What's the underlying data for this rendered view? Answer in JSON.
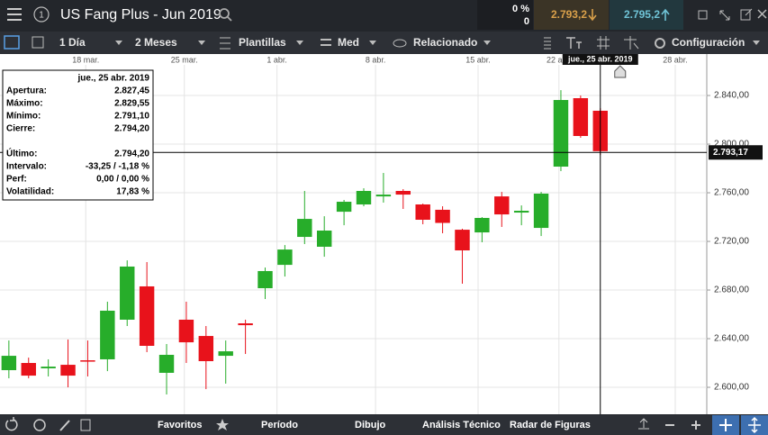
{
  "header": {
    "badge": "1",
    "title": "US Fang Plus - Jun 2019",
    "change_pct": "0 %",
    "change_abs": "0",
    "bid": "2.793,2",
    "ask": "2.795,2"
  },
  "toolbar": {
    "interval": "1 Día",
    "range": "2 Meses",
    "templates": "Plantillas",
    "study": "Med",
    "related": "Relacionado",
    "settings": "Configuración"
  },
  "info_panel": {
    "date": "jue., 25 abr. 2019",
    "rows": [
      [
        "Apertura:",
        "2.827,45"
      ],
      [
        "Máximo:",
        "2.829,55"
      ],
      [
        "Mínimo:",
        "2.791,10"
      ],
      [
        "Cierre:",
        "2.794,20"
      ]
    ],
    "rows2": [
      [
        "Último:",
        "2.794,20"
      ],
      [
        "Intervalo:",
        "-33,25 / -1,18 %"
      ],
      [
        "Perf:",
        "0,00 / 0,00 %"
      ],
      [
        "Volatilidad:",
        "17,83 %"
      ]
    ]
  },
  "footer": {
    "favorites": "Favoritos",
    "period": "Período",
    "drawing": "Dibujo",
    "technical": "Análisis Técnico",
    "patterns": "Radar de Figuras"
  },
  "chart_data": {
    "type": "candlestick",
    "categories": [
      null,
      null,
      null,
      null,
      null,
      null,
      null,
      null,
      null,
      null,
      null,
      null,
      null,
      null,
      null,
      null,
      null,
      null,
      null,
      null,
      null,
      null,
      null,
      null,
      null,
      null,
      null,
      null,
      null,
      null,
      null
    ],
    "open": [
      2614.1,
      2620.0,
      2615.6,
      2618.5,
      2622.2,
      2623.0,
      2655.6,
      2683.0,
      2611.9,
      2655.6,
      2642.2,
      2625.9,
      2652.6,
      2681.5,
      2700.7,
      2723.7,
      2715.6,
      2744.4,
      2750.4,
      2757.0,
      2761.5,
      2750.4,
      2746.0,
      2729.6,
      2727.4,
      2757.0,
      2743.7,
      2731.1,
      2781.5,
      2837.8,
      2827.45
    ],
    "high": [
      2638.5,
      2624.4,
      2623.0,
      2639.3,
      2638.5,
      2670.4,
      2704.4,
      2703.0,
      2635.6,
      2670.4,
      2650.4,
      2638.5,
      2655.6,
      2698.5,
      2717.0,
      2761.5,
      2740.7,
      2754.1,
      2763.7,
      2776.3,
      2763.0,
      2751.1,
      2748.9,
      2730.4,
      2740.0,
      2760.7,
      2749.6,
      2760.7,
      2844.4,
      2840.0,
      2829.55
    ],
    "low": [
      2607.4,
      2607.4,
      2608.9,
      2600.0,
      2608.9,
      2613.3,
      2650.4,
      2628.9,
      2594.1,
      2620.0,
      2598.5,
      2603.0,
      2627.4,
      2672.6,
      2691.1,
      2717.8,
      2707.4,
      2733.3,
      2748.9,
      2751.9,
      2746.7,
      2734.1,
      2726.7,
      2685.2,
      2719.3,
      2731.9,
      2733.3,
      2724.4,
      2777.8,
      2805.2,
      2791.1
    ],
    "close": [
      2625.9,
      2609.6,
      2617.0,
      2609.6,
      2621.5,
      2663.0,
      2699.3,
      2634.1,
      2626.7,
      2637.0,
      2621.5,
      2629.6,
      2651.1,
      2695.6,
      2713.3,
      2738.5,
      2728.9,
      2752.6,
      2761.5,
      2758.5,
      2758.5,
      2737.8,
      2735.2,
      2712.6,
      2739.3,
      2742.2,
      2745.2,
      2759.3,
      2836.3,
      2806.7,
      2794.2
    ],
    "up_color": "#27ad2a",
    "down_color": "#e8121b",
    "xlim": [
      -0.45,
      35.4
    ],
    "xticks": [
      {
        "value": 3.9,
        "label": "18 mar."
      },
      {
        "value": 8.9,
        "label": "25 mar."
      },
      {
        "value": 13.6,
        "label": "1 abr."
      },
      {
        "value": 18.6,
        "label": "8 abr."
      },
      {
        "value": 23.8,
        "label": "15 abr."
      },
      {
        "value": 27.9,
        "label": "22 abr."
      },
      {
        "value": 33.8,
        "label": "28 abr."
      }
    ],
    "ylim": [
      2577.8,
      2874.1
    ],
    "yticks": [
      {
        "value": 2600,
        "label": "2.600,00"
      },
      {
        "value": 2640,
        "label": "2.640,00"
      },
      {
        "value": 2680,
        "label": "2.680,00"
      },
      {
        "value": 2720,
        "label": "2.720,00"
      },
      {
        "value": 2760,
        "label": "2.760,00"
      },
      {
        "value": 2800,
        "label": "2.800,00"
      },
      {
        "value": 2840,
        "label": "2.840,00"
      }
    ],
    "grid": true,
    "last_price": {
      "value": 2793.17,
      "label": "2.793,17"
    },
    "crosshair": {
      "value": 30,
      "label": "jue., 25 abr. 2019"
    }
  }
}
